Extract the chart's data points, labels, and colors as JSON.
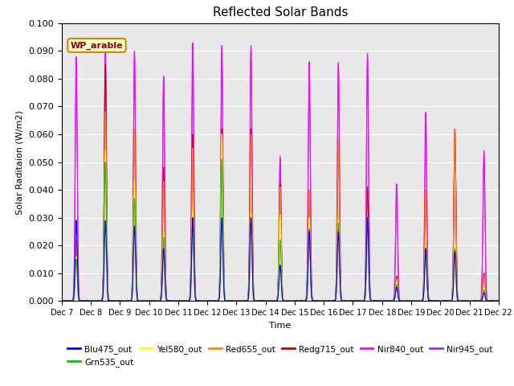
{
  "title": "Reflected Solar Bands",
  "xlabel": "Time",
  "ylabel": "Solar Raditaion (W/m2)",
  "xlim_days": [
    7,
    22
  ],
  "ylim": [
    0,
    0.1
  ],
  "yticks": [
    0.0,
    0.01,
    0.02,
    0.03,
    0.04,
    0.05,
    0.06,
    0.07,
    0.08,
    0.09,
    0.1
  ],
  "bg_color": "#e8e8e8",
  "annotation_text": "WP_arable",
  "annotation_bg": "#ffffcc",
  "annotation_border": "#cc8800",
  "series": [
    {
      "label": "Blu475_out",
      "color": "#0000ff"
    },
    {
      "label": "Grn535_out",
      "color": "#00cc00"
    },
    {
      "label": "Yel580_out",
      "color": "#ffff00"
    },
    {
      "label": "Red655_out",
      "color": "#ff8800"
    },
    {
      "label": "Redg715_out",
      "color": "#cc0000"
    },
    {
      "label": "Nir840_out",
      "color": "#ff00ff"
    },
    {
      "label": "Nir945_out",
      "color": "#9933ff"
    }
  ],
  "day_peaks": {
    "7": {
      "Blu475_out": 0.029,
      "Grn535_out": 0.015,
      "Yel580_out": 0.016,
      "Red655_out": 0.022,
      "Redg715_out": 0.022,
      "Nir840_out": 0.088,
      "Nir945_out": 0.086
    },
    "8": {
      "Blu475_out": 0.029,
      "Grn535_out": 0.05,
      "Yel580_out": 0.054,
      "Red655_out": 0.068,
      "Redg715_out": 0.085,
      "Nir840_out": 0.094,
      "Nir945_out": 0.092
    },
    "9": {
      "Blu475_out": 0.027,
      "Grn535_out": 0.037,
      "Yel580_out": 0.043,
      "Red655_out": 0.062,
      "Redg715_out": 0.062,
      "Nir840_out": 0.09,
      "Nir945_out": 0.089
    },
    "10": {
      "Blu475_out": 0.019,
      "Grn535_out": 0.023,
      "Yel580_out": 0.025,
      "Red655_out": 0.043,
      "Redg715_out": 0.048,
      "Nir840_out": 0.081,
      "Nir945_out": 0.08
    },
    "11": {
      "Blu475_out": 0.03,
      "Grn535_out": 0.03,
      "Yel580_out": 0.032,
      "Red655_out": 0.055,
      "Redg715_out": 0.06,
      "Nir840_out": 0.093,
      "Nir945_out": 0.092
    },
    "12": {
      "Blu475_out": 0.03,
      "Grn535_out": 0.051,
      "Yel580_out": 0.06,
      "Red655_out": 0.06,
      "Redg715_out": 0.062,
      "Nir840_out": 0.092,
      "Nir945_out": 0.091
    },
    "13": {
      "Blu475_out": 0.03,
      "Grn535_out": 0.03,
      "Yel580_out": 0.032,
      "Red655_out": 0.06,
      "Redg715_out": 0.062,
      "Nir840_out": 0.092,
      "Nir945_out": 0.091
    },
    "14": {
      "Blu475_out": 0.013,
      "Grn535_out": 0.022,
      "Yel580_out": 0.031,
      "Red655_out": 0.041,
      "Redg715_out": 0.042,
      "Nir840_out": 0.052,
      "Nir945_out": 0.051
    },
    "15": {
      "Blu475_out": 0.025,
      "Grn535_out": 0.026,
      "Yel580_out": 0.03,
      "Red655_out": 0.04,
      "Redg715_out": 0.04,
      "Nir840_out": 0.086,
      "Nir945_out": 0.085
    },
    "16": {
      "Blu475_out": 0.025,
      "Grn535_out": 0.028,
      "Yel580_out": 0.03,
      "Red655_out": 0.058,
      "Redg715_out": 0.058,
      "Nir840_out": 0.086,
      "Nir945_out": 0.085
    },
    "17": {
      "Blu475_out": 0.03,
      "Grn535_out": 0.03,
      "Yel580_out": 0.03,
      "Red655_out": 0.03,
      "Redg715_out": 0.041,
      "Nir840_out": 0.089,
      "Nir945_out": 0.088
    },
    "18": {
      "Blu475_out": 0.005,
      "Grn535_out": 0.006,
      "Yel580_out": 0.007,
      "Red655_out": 0.008,
      "Redg715_out": 0.009,
      "Nir840_out": 0.042,
      "Nir945_out": 0.041
    },
    "19": {
      "Blu475_out": 0.019,
      "Grn535_out": 0.019,
      "Yel580_out": 0.02,
      "Red655_out": 0.04,
      "Redg715_out": 0.04,
      "Nir840_out": 0.068,
      "Nir945_out": 0.067
    },
    "20": {
      "Blu475_out": 0.018,
      "Grn535_out": 0.019,
      "Yel580_out": 0.02,
      "Red655_out": 0.062,
      "Redg715_out": 0.062,
      "Nir840_out": 0.062,
      "Nir945_out": 0.061
    },
    "21": {
      "Blu475_out": 0.003,
      "Grn535_out": 0.004,
      "Yel580_out": 0.005,
      "Red655_out": 0.009,
      "Redg715_out": 0.01,
      "Nir840_out": 0.054,
      "Nir945_out": 0.053
    }
  },
  "tick_labels": [
    "Dec 7",
    "Dec 8",
    "Dec 9",
    "Dec 10",
    "Dec 11",
    "Dec 12",
    "Dec 13",
    "Dec 14",
    "Dec 15",
    "Dec 16",
    "Dec 17",
    "Dec 18",
    "Dec 19",
    "Dec 20",
    "Dec 21",
    "Dec 22"
  ],
  "figsize": [
    6.4,
    4.8
  ],
  "dpi": 100
}
